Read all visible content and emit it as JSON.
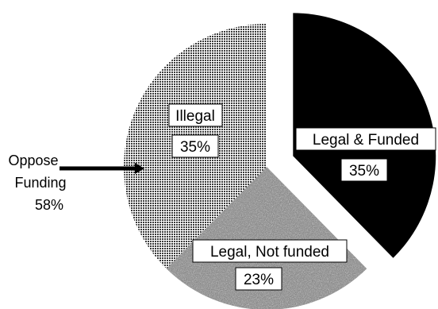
{
  "chart_data": {
    "type": "pie",
    "slices": [
      {
        "label": "Legal & Funded",
        "value": 35,
        "value_label": "35%",
        "color": "#000000",
        "exploded": true,
        "fill": "solid"
      },
      {
        "label": "Legal, Not funded",
        "value": 23,
        "value_label": "23%",
        "color": "#7a7a7a",
        "exploded": false,
        "fill": "noise"
      },
      {
        "label": "Illegal",
        "value": 35,
        "value_label": "35%",
        "color": "#9a9a9a",
        "exploded": false,
        "fill": "dots"
      }
    ],
    "callout": {
      "lines": [
        "Oppose",
        "Funding",
        "58%"
      ]
    }
  }
}
